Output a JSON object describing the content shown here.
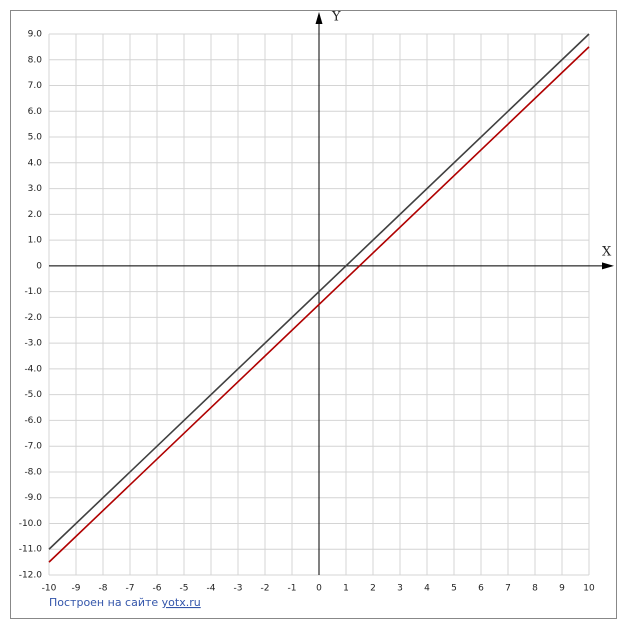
{
  "chart_data": {
    "type": "line",
    "x_label": "X",
    "y_label": "Y",
    "footer": "Построен на сайте",
    "footer_link": "yotx.ru",
    "x": [
      -10,
      10
    ],
    "series": [
      {
        "color": "#404040",
        "values": [
          -11,
          9
        ]
      },
      {
        "color": "#b00000",
        "values": [
          -11.5,
          8.5
        ]
      }
    ],
    "xlim": [
      -10,
      10
    ],
    "xticks": [
      -10,
      -9,
      -8,
      -7,
      -6,
      -5,
      -4,
      -3,
      -2,
      -1,
      0,
      1,
      2,
      3,
      4,
      5,
      6,
      7,
      8,
      9,
      10
    ],
    "ylim": [
      -12,
      9
    ],
    "yticks": [
      {
        "value": 9,
        "label": "9.0"
      },
      {
        "value": 8,
        "label": "8.0"
      },
      {
        "value": 7,
        "label": "7.0"
      },
      {
        "value": 6,
        "label": "6.0"
      },
      {
        "value": 5,
        "label": "5.0"
      },
      {
        "value": 4,
        "label": "4.0"
      },
      {
        "value": 3,
        "label": "3.0"
      },
      {
        "value": 2,
        "label": "2.0"
      },
      {
        "value": 1,
        "label": "1.0"
      },
      0,
      {
        "value": -1,
        "label": "-1.0"
      },
      {
        "value": -2,
        "label": "-2.0"
      },
      {
        "value": -3,
        "label": "-3.0"
      },
      {
        "value": -4,
        "label": "-4.0"
      },
      {
        "value": -5,
        "label": "-5.0"
      },
      {
        "value": -6,
        "label": "-6.0"
      },
      {
        "value": -7,
        "label": "-7.0"
      },
      {
        "value": -8,
        "label": "-8.0"
      },
      {
        "value": -9,
        "label": "-9.0"
      },
      {
        "value": -10,
        "label": "-10.0"
      },
      {
        "value": -11,
        "label": "-11.0"
      },
      {
        "value": -12,
        "label": "-12.0"
      }
    ],
    "grid": true
  }
}
